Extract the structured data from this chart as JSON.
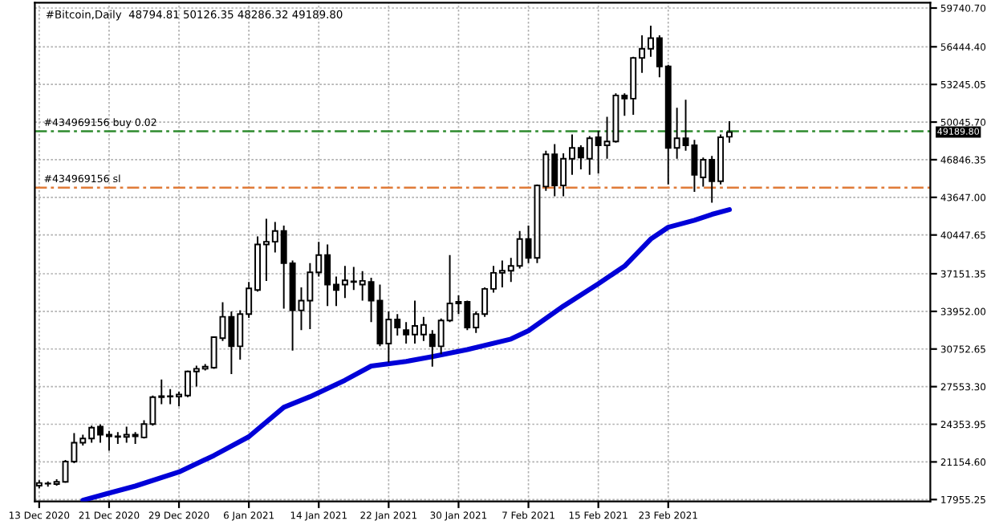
{
  "chart_data": {
    "type": "candlestick",
    "title": "#Bitcoin,Daily  48794.81 50126.35 48286.32 49189.80",
    "x": [
      "2020-12-13",
      "2020-12-14",
      "2020-12-15",
      "2020-12-16",
      "2020-12-17",
      "2020-12-18",
      "2020-12-19",
      "2020-12-20",
      "2020-12-21",
      "2020-12-22",
      "2020-12-23",
      "2020-12-24",
      "2020-12-25",
      "2020-12-26",
      "2020-12-27",
      "2020-12-28",
      "2020-12-29",
      "2020-12-30",
      "2020-12-31",
      "2021-01-01",
      "2021-01-02",
      "2021-01-03",
      "2021-01-04",
      "2021-01-05",
      "2021-01-06",
      "2021-01-07",
      "2021-01-08",
      "2021-01-09",
      "2021-01-10",
      "2021-01-11",
      "2021-01-12",
      "2021-01-13",
      "2021-01-14",
      "2021-01-15",
      "2021-01-16",
      "2021-01-17",
      "2021-01-18",
      "2021-01-19",
      "2021-01-20",
      "2021-01-21",
      "2021-01-22",
      "2021-01-23",
      "2021-01-24",
      "2021-01-25",
      "2021-01-26",
      "2021-01-27",
      "2021-01-28",
      "2021-01-29",
      "2021-01-30",
      "2021-01-31",
      "2021-02-01",
      "2021-02-02",
      "2021-02-03",
      "2021-02-04",
      "2021-02-05",
      "2021-02-06",
      "2021-02-07",
      "2021-02-08",
      "2021-02-09",
      "2021-02-10",
      "2021-02-11",
      "2021-02-12",
      "2021-02-13",
      "2021-02-14",
      "2021-02-15",
      "2021-02-16",
      "2021-02-17",
      "2021-02-18",
      "2021-02-19",
      "2021-02-20",
      "2021-02-21",
      "2021-02-22",
      "2021-02-23",
      "2021-02-24",
      "2021-02-25",
      "2021-02-26",
      "2021-02-27",
      "2021-02-28",
      "2021-03-01",
      "2021-03-02"
    ],
    "ohlc": [
      [
        19140,
        19593,
        18910,
        19365
      ],
      [
        19300,
        19500,
        19050,
        19320
      ],
      [
        19275,
        19685,
        19140,
        19460
      ],
      [
        19460,
        21325,
        19370,
        21189
      ],
      [
        21189,
        23604,
        21052,
        22784
      ],
      [
        22784,
        23467,
        22556,
        23148
      ],
      [
        23148,
        24242,
        22784,
        24060
      ],
      [
        24150,
        24333,
        22784,
        23467
      ],
      [
        23467,
        23786,
        22100,
        23330
      ],
      [
        23330,
        23695,
        22692,
        23285
      ],
      [
        23285,
        24150,
        22784,
        23467
      ],
      [
        23467,
        23695,
        22692,
        23330
      ],
      [
        23240,
        24698,
        23148,
        24379
      ],
      [
        24379,
        26794,
        24242,
        26657
      ],
      [
        26657,
        28161,
        26065,
        26750
      ],
      [
        26750,
        27340,
        26065,
        26703
      ],
      [
        26703,
        27112,
        25883,
        26885
      ],
      [
        26794,
        28935,
        26657,
        28844
      ],
      [
        28844,
        29345,
        27568,
        29072
      ],
      [
        29072,
        29482,
        28935,
        29254
      ],
      [
        29163,
        31761,
        29072,
        31761
      ],
      [
        31670,
        34723,
        31442,
        33493
      ],
      [
        33493,
        33949,
        28616,
        30986
      ],
      [
        30986,
        34040,
        29847,
        33720
      ],
      [
        33720,
        36454,
        33402,
        35907
      ],
      [
        35771,
        40328,
        35634,
        39644
      ],
      [
        39644,
        41831,
        36545,
        39872
      ],
      [
        39872,
        41558,
        38961,
        40783
      ],
      [
        40783,
        41239,
        34176,
        38049
      ],
      [
        38049,
        38277,
        30621,
        34040
      ],
      [
        34040,
        35998,
        32353,
        34860
      ],
      [
        34860,
        38049,
        32444,
        37275
      ],
      [
        37275,
        39872,
        36910,
        38733
      ],
      [
        38733,
        39644,
        34404,
        36226
      ],
      [
        36226,
        36910,
        34404,
        35771
      ],
      [
        36226,
        37822,
        35087,
        36591
      ],
      [
        36454,
        37731,
        35771,
        36500
      ],
      [
        36226,
        37366,
        34860,
        36545
      ],
      [
        36454,
        36819,
        33037,
        34860
      ],
      [
        34860,
        36226,
        30985,
        31212
      ],
      [
        31212,
        33949,
        29617,
        33263
      ],
      [
        33263,
        33720,
        31897,
        32580
      ],
      [
        32353,
        33037,
        31212,
        31986
      ],
      [
        31986,
        34858,
        31212,
        32716
      ],
      [
        31986,
        33491,
        31440,
        32808
      ],
      [
        31986,
        32353,
        29254,
        30985
      ],
      [
        30985,
        33355,
        30302,
        33172
      ],
      [
        33172,
        38733,
        33035,
        34631
      ],
      [
        34631,
        35315,
        33719,
        34768
      ],
      [
        34768,
        34858,
        32353,
        32580
      ],
      [
        32580,
        33947,
        32125,
        33719
      ],
      [
        33719,
        35999,
        33491,
        35862
      ],
      [
        35862,
        37821,
        35542,
        37229
      ],
      [
        37229,
        38275,
        35999,
        37412
      ],
      [
        37412,
        38503,
        36454,
        37821
      ],
      [
        37821,
        40783,
        37593,
        40099
      ],
      [
        40099,
        41239,
        38048,
        38503
      ],
      [
        38503,
        44747,
        38048,
        44656
      ],
      [
        44564,
        47618,
        44200,
        47299
      ],
      [
        47299,
        48172,
        43744,
        44656
      ],
      [
        44656,
        47390,
        43744,
        46934
      ],
      [
        46934,
        48984,
        45567,
        47845
      ],
      [
        47845,
        48073,
        46023,
        47025
      ],
      [
        46934,
        48848,
        45567,
        48665
      ],
      [
        48757,
        49304,
        45658,
        48073
      ],
      [
        48073,
        50489,
        46934,
        48392
      ],
      [
        48392,
        52493,
        48301,
        52311
      ],
      [
        52311,
        52493,
        50580,
        52038
      ],
      [
        52038,
        55592,
        50671,
        55501
      ],
      [
        55501,
        57416,
        54225,
        56277
      ],
      [
        56277,
        58235,
        55592,
        57188
      ],
      [
        57188,
        57416,
        53861,
        54772
      ],
      [
        54772,
        54909,
        44747,
        47845
      ],
      [
        47845,
        51264,
        46934,
        48665
      ],
      [
        48665,
        51948,
        47618,
        48073
      ],
      [
        48073,
        48529,
        44109,
        45567
      ],
      [
        45340,
        47025,
        44564,
        46843
      ],
      [
        46843,
        47162,
        43198,
        45020
      ],
      [
        45020,
        48984,
        44747,
        48757
      ],
      [
        48795,
        50126,
        48286,
        49190
      ]
    ],
    "series": [
      {
        "type": "line",
        "color": "#0000d8",
        "x": [
          "2020-12-18",
          "2020-12-21",
          "2020-12-24",
          "2020-12-29",
          "2021-01-02",
          "2021-01-06",
          "2021-01-10",
          "2021-01-13",
          "2021-01-17",
          "2021-01-20",
          "2021-01-24",
          "2021-01-27",
          "2021-01-31",
          "2021-02-05",
          "2021-02-07",
          "2021-02-11",
          "2021-02-15",
          "2021-02-18",
          "2021-02-21",
          "2021-02-23",
          "2021-02-26",
          "2021-02-28",
          "2021-03-02"
        ],
        "values": [
          17900,
          18500,
          19100,
          20300,
          21700,
          23300,
          25800,
          26700,
          28100,
          29300,
          29700,
          30100,
          30700,
          31600,
          32300,
          34400,
          36300,
          37800,
          40100,
          41100,
          41700,
          42200,
          42600
        ]
      }
    ],
    "ref_lines": [
      {
        "axis": "y",
        "value": 49260,
        "label": "#434969156 buy 0.02",
        "color": "#2e8b2e",
        "line_style": "dashed"
      },
      {
        "axis": "y",
        "value": 44475,
        "label": "#434969156 sl",
        "color": "#e07b39",
        "line_style": "dashed"
      }
    ],
    "annotations": [
      "49189.80"
    ],
    "xlim": [
      "2020-12-12T12:00",
      "2021-03-25"
    ],
    "ylim": [
      17800,
      60200
    ],
    "xticks": [
      {
        "value": "2020-12-13",
        "label": "13 Dec 2020"
      },
      {
        "value": "2020-12-21",
        "label": "21 Dec 2020"
      },
      {
        "value": "2020-12-29",
        "label": "29 Dec 2020"
      },
      {
        "value": "2021-01-06",
        "label": "6 Jan 2021"
      },
      {
        "value": "2021-01-14",
        "label": "14 Jan 2021"
      },
      {
        "value": "2021-01-22",
        "label": "22 Jan 2021"
      },
      {
        "value": "2021-01-30",
        "label": "30 Jan 2021"
      },
      {
        "value": "2021-02-07",
        "label": "7 Feb 2021"
      },
      {
        "value": "2021-02-15",
        "label": "15 Feb 2021"
      },
      {
        "value": "2021-02-23",
        "label": "23 Feb 2021"
      }
    ],
    "yticks": [
      {
        "value": 17955.25,
        "label": "17955.25"
      },
      {
        "value": 21154.6,
        "label": "21154.60"
      },
      {
        "value": 24353.95,
        "label": "24353.95"
      },
      {
        "value": 27553.3,
        "label": "27553.30"
      },
      {
        "value": 30752.65,
        "label": "30752.65"
      },
      {
        "value": 33952.0,
        "label": "33952.00"
      },
      {
        "value": 37151.35,
        "label": "37151.35"
      },
      {
        "value": 40447.65,
        "label": "40447.65"
      },
      {
        "value": 43647.0,
        "label": "43647.00"
      },
      {
        "value": 46846.35,
        "label": "46846.35"
      },
      {
        "value": 50045.7,
        "label": "50045.70"
      },
      {
        "value": 53245.05,
        "label": "53245.05"
      },
      {
        "value": 56444.4,
        "label": "56444.40"
      },
      {
        "value": 59740.7,
        "label": "59740.70"
      }
    ],
    "grid": true,
    "legend": false
  }
}
